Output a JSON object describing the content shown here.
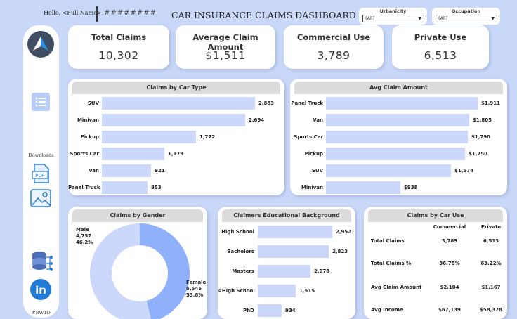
{
  "header": {
    "greeting": "Hello, <Full Name>",
    "hashes": "########",
    "title": "CAR INSURANCE CLAIMS DASHBOARD",
    "filters": [
      {
        "label": "Urbanicity",
        "value": "(All)"
      },
      {
        "label": "Occupation",
        "value": "(All)"
      }
    ]
  },
  "sidebar": {
    "downloads_label": "Downloads",
    "footer_tag": "#RWTD",
    "pdf_label": "PDF",
    "linkedin_label": "in"
  },
  "kpis": [
    {
      "label": "Total Claims",
      "value": "10,302"
    },
    {
      "label": "Average Claim Amount",
      "value": "$1,511"
    },
    {
      "label": "Commercial Use",
      "value": "3,789"
    },
    {
      "label": "Private Use",
      "value": "6,513"
    }
  ],
  "claims_by_car_type": {
    "title": "Claims by Car Type",
    "max": 2883,
    "rows": [
      {
        "label": "SUV",
        "value": 2883,
        "display": "2,883"
      },
      {
        "label": "Minivan",
        "value": 2694,
        "display": "2,694"
      },
      {
        "label": "Pickup",
        "value": 1772,
        "display": "1,772"
      },
      {
        "label": "Sports Car",
        "value": 1179,
        "display": "1,179"
      },
      {
        "label": "Van",
        "value": 921,
        "display": "921"
      },
      {
        "label": "Panel Truck",
        "value": 853,
        "display": "853"
      }
    ]
  },
  "avg_claim_amount": {
    "title": "Avg Claim Amount",
    "max": 1911,
    "rows": [
      {
        "label": "Panel Truck",
        "value": 1911,
        "display": "$1,911"
      },
      {
        "label": "Van",
        "value": 1805,
        "display": "$1,805"
      },
      {
        "label": "Sports Car",
        "value": 1790,
        "display": "$1,790"
      },
      {
        "label": "Pickup",
        "value": 1750,
        "display": "$1,750"
      },
      {
        "label": "SUV",
        "value": 1574,
        "display": "$1,574"
      },
      {
        "label": "Minivan",
        "value": 938,
        "display": "$938"
      }
    ]
  },
  "claims_by_gender": {
    "title": "Claims by Gender",
    "segments": [
      {
        "label": "Male",
        "value": 4757,
        "display": "4,757",
        "pct": "46.2%",
        "color": "#8fb0fb"
      },
      {
        "label": "Female",
        "value": 5545,
        "display": "5,545",
        "pct": "53.8%",
        "color": "#cbd8fb"
      }
    ]
  },
  "education": {
    "title": "Claimers Educational Background",
    "max": 2952,
    "rows": [
      {
        "label": "High School",
        "value": 2952,
        "display": "2,952"
      },
      {
        "label": "Bachelors",
        "value": 2823,
        "display": "2,823"
      },
      {
        "label": "Masters",
        "value": 2078,
        "display": "2,078"
      },
      {
        "label": "<High School",
        "value": 1515,
        "display": "1,515"
      },
      {
        "label": "PhD",
        "value": 934,
        "display": "934"
      }
    ]
  },
  "claims_by_car_use": {
    "title": "Claims by Car Use",
    "columns": [
      "Commercial",
      "Private"
    ],
    "rows": [
      {
        "label": "Total Claims",
        "commercial": "3,789",
        "private": "6,513"
      },
      {
        "label": "Total Claims %",
        "commercial": "36.78%",
        "private": "63.22%"
      },
      {
        "label": "Avg Claim Amount",
        "commercial": "$2,104",
        "private": "$1,167"
      },
      {
        "label": "Avg Income",
        "commercial": "$67,139",
        "private": "$58,328"
      }
    ]
  },
  "chart_data": [
    {
      "type": "bar",
      "title": "Claims by Car Type",
      "categories": [
        "SUV",
        "Minivan",
        "Pickup",
        "Sports Car",
        "Van",
        "Panel Truck"
      ],
      "values": [
        2883,
        2694,
        1772,
        1179,
        921,
        853
      ]
    },
    {
      "type": "bar",
      "title": "Avg Claim Amount",
      "categories": [
        "Panel Truck",
        "Van",
        "Sports Car",
        "Pickup",
        "SUV",
        "Minivan"
      ],
      "values": [
        1911,
        1805,
        1790,
        1750,
        1574,
        938
      ]
    },
    {
      "type": "pie",
      "title": "Claims by Gender",
      "categories": [
        "Male",
        "Female"
      ],
      "values": [
        4757,
        5545
      ]
    },
    {
      "type": "bar",
      "title": "Claimers Educational Background",
      "categories": [
        "High School",
        "Bachelors",
        "Masters",
        "<High School",
        "PhD"
      ],
      "values": [
        2952,
        2823,
        2078,
        1515,
        934
      ]
    }
  ]
}
